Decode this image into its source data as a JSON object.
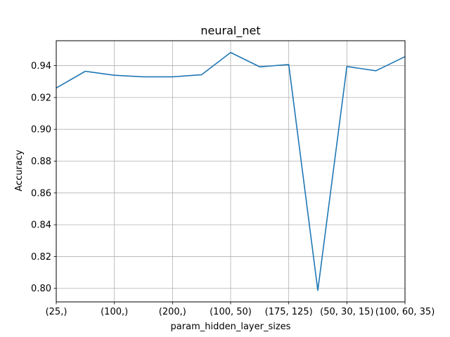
{
  "chart_data": {
    "type": "line",
    "title": "neural_net",
    "xlabel": "param_hidden_layer_sizes",
    "ylabel": "Accuracy",
    "x_tick_labels": [
      "(25,)",
      "(100,)",
      "(200,)",
      "(100, 50)",
      "(175, 125)",
      "(50, 30, 15)",
      "(100, 60, 35)"
    ],
    "x_tick_positions": [
      0,
      2,
      4,
      6,
      8,
      10,
      12
    ],
    "x": [
      0,
      1,
      2,
      3,
      4,
      5,
      6,
      7,
      8,
      9,
      10,
      11,
      12
    ],
    "series": [
      {
        "values": [
          0.926,
          0.9365,
          0.934,
          0.933,
          0.933,
          0.9343,
          0.9483,
          0.9393,
          0.9407,
          0.7987,
          0.9395,
          0.9368,
          0.9457
        ],
        "color": "#1f77b4"
      }
    ],
    "xlim": [
      0,
      12
    ],
    "ylim": [
      0.7915,
      0.9557
    ],
    "y_ticks": [
      0.8,
      0.82,
      0.84,
      0.86,
      0.88,
      0.9,
      0.92,
      0.94
    ],
    "grid": true
  }
}
